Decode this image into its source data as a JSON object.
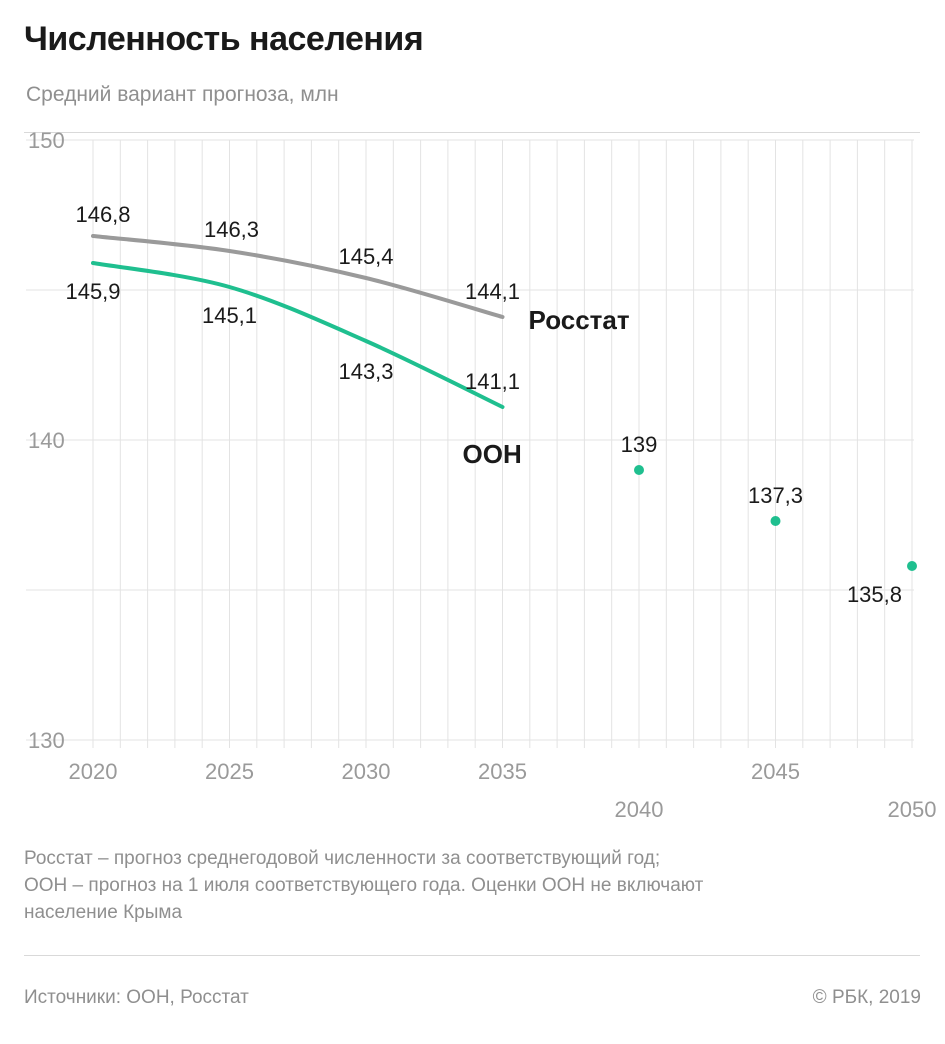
{
  "header": {
    "title": "Численность населения",
    "subtitle": "Средний вариант прогноза, млн"
  },
  "footnote": {
    "lines": [
      "Росстат – прогноз среднегодовой численности за соответствующий год;",
      "ООН – прогноз на 1 июля соответствующего года. Оценки ООН не включают",
      "население Крыма"
    ]
  },
  "footer": {
    "source": "Источники: ООН, Росстат",
    "copyright": "© РБК, 2019"
  },
  "colors": {
    "rosstat": "#9a9a9a",
    "un": "#1fbf8f",
    "grid": "#e3e3e3",
    "axis_text": "#9a9a9a",
    "label_text": "#1a1a1a"
  },
  "chart_data": {
    "type": "line",
    "title": "Численность населения",
    "subtitle": "Средний вариант прогноза, млн",
    "ylim": [
      130,
      150
    ],
    "y_ticks": [
      "130",
      "140",
      "150"
    ],
    "xlim": [
      2020,
      2050
    ],
    "x_ticks": [
      "2020",
      "2025",
      "2030",
      "2035",
      "2040",
      "2045",
      "2050"
    ],
    "grid": true,
    "series": [
      {
        "name": "Росстат",
        "style": "line",
        "color": "#9a9a9a",
        "points": [
          {
            "x": 2020,
            "y": 146.8,
            "label": "146,8"
          },
          {
            "x": 2025,
            "y": 146.3,
            "label": "146,3"
          },
          {
            "x": 2030,
            "y": 145.4,
            "label": "145,4"
          },
          {
            "x": 2035,
            "y": 144.1,
            "label": "144,1"
          }
        ]
      },
      {
        "name": "ООН",
        "style": "line",
        "color": "#1fbf8f",
        "points": [
          {
            "x": 2020,
            "y": 145.9,
            "label": "145,9"
          },
          {
            "x": 2025,
            "y": 145.1,
            "label": "145,1"
          },
          {
            "x": 2030,
            "y": 143.3,
            "label": "143,3"
          },
          {
            "x": 2035,
            "y": 141.1,
            "label": "141,1"
          }
        ]
      },
      {
        "name": "",
        "style": "dots",
        "color": "#1fbf8f",
        "points": [
          {
            "x": 2040,
            "y": 139.0,
            "label": "139"
          },
          {
            "x": 2045,
            "y": 137.3,
            "label": "137,3"
          },
          {
            "x": 2050,
            "y": 135.8,
            "label": "135,8"
          }
        ]
      }
    ]
  }
}
